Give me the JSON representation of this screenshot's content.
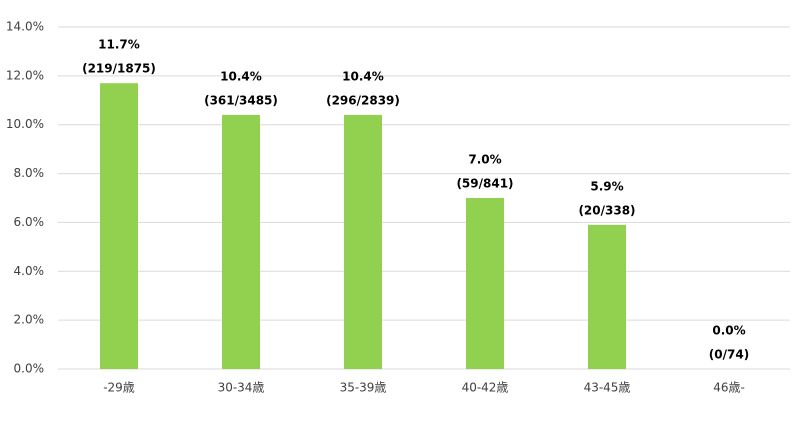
{
  "chart_data": {
    "type": "bar",
    "categories": [
      "-29歳",
      "30-34歳",
      "35-39歳",
      "40-42歳",
      "43-45歳",
      "46歳-"
    ],
    "values": [
      11.7,
      10.4,
      10.4,
      7.0,
      5.9,
      0.0
    ],
    "value_labels": [
      "11.7%",
      "10.4%",
      "10.4%",
      "7.0%",
      "5.9%",
      "0.0%"
    ],
    "annotations": [
      "(219/1875)",
      "(361/3485)",
      "(296/2839)",
      "(59/841)",
      "(20/338)",
      "(0/74)"
    ],
    "color": "#92d050",
    "ylim": [
      0,
      14
    ],
    "yticks": [
      {
        "value": 0,
        "label": "0.0%"
      },
      {
        "value": 2,
        "label": "2.0%"
      },
      {
        "value": 4,
        "label": "4.0%"
      },
      {
        "value": 6,
        "label": "6.0%"
      },
      {
        "value": 8,
        "label": "8.0%"
      },
      {
        "value": 10,
        "label": "10.0%"
      },
      {
        "value": 12,
        "label": "12.0%"
      },
      {
        "value": 14,
        "label": "14.0%"
      }
    ],
    "grid": true
  }
}
